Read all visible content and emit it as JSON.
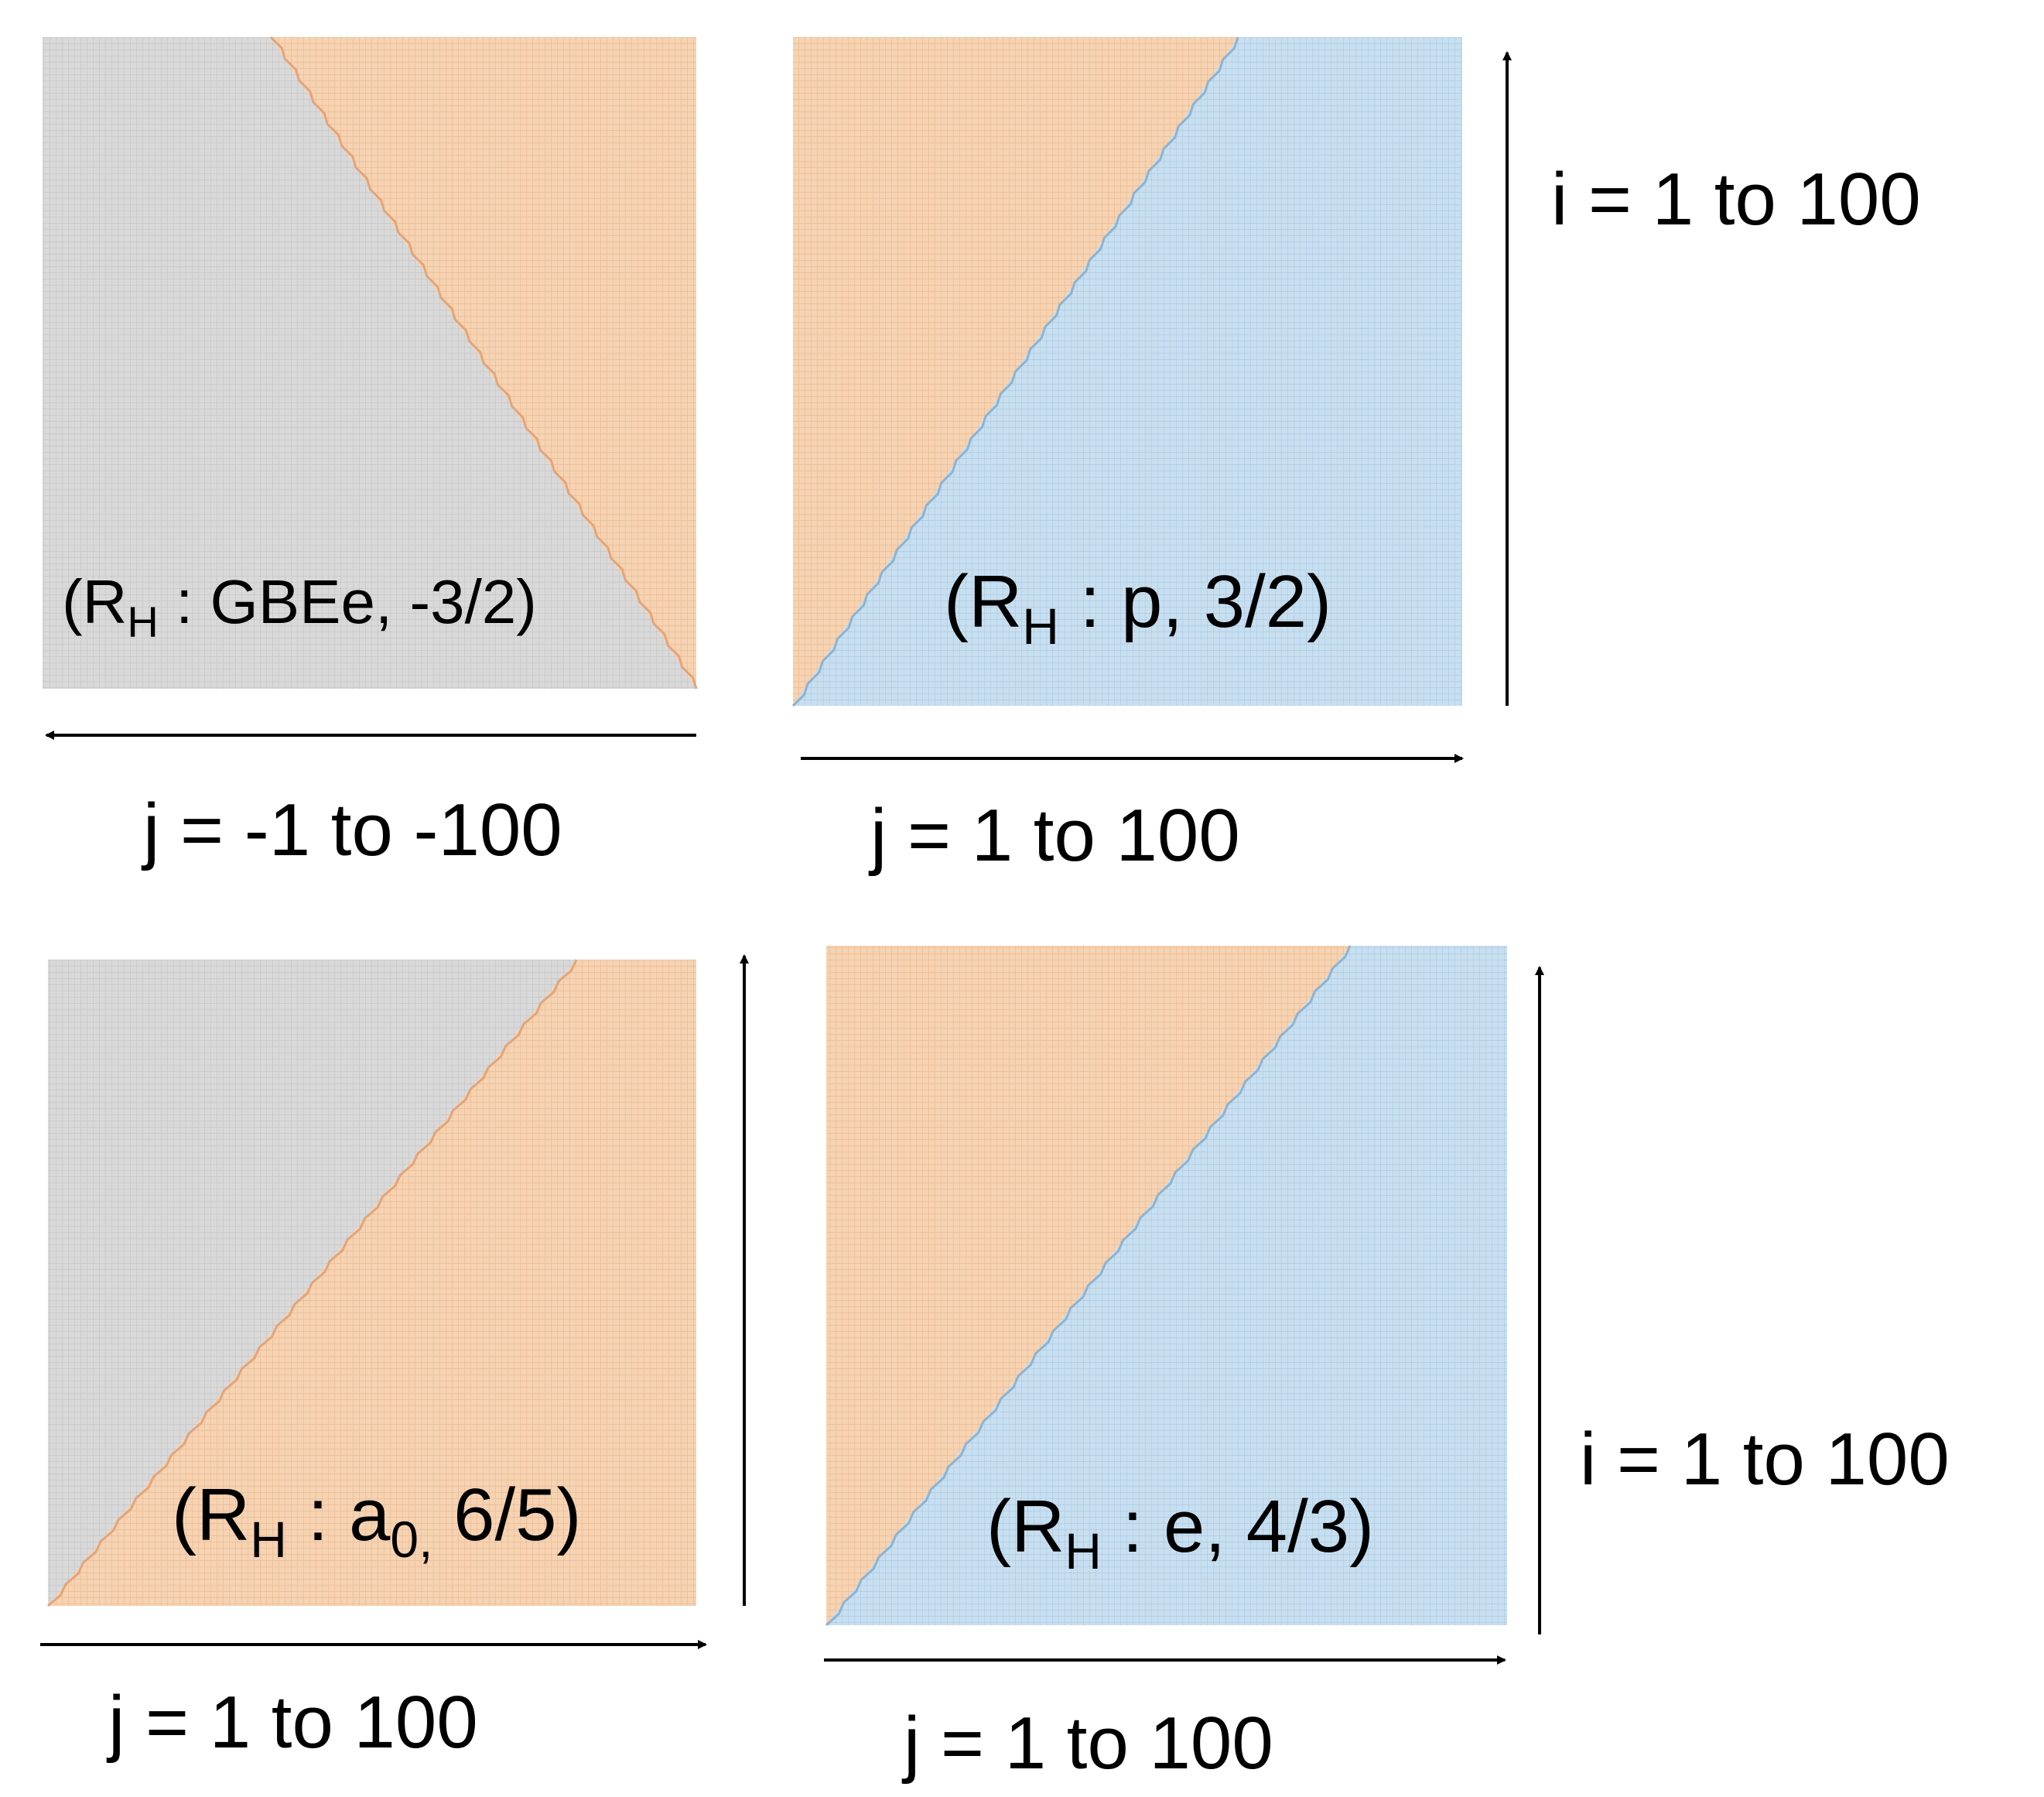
{
  "colors": {
    "grey": "#d9d9d9",
    "orange": "#f6d3b2",
    "blue": "#c8dff0",
    "grid_grey": "#c4c4c4",
    "grid_orange": "#e9b98f",
    "grid_blue": "#a9c9e2",
    "text": "#000000"
  },
  "panels": [
    {
      "id": "top-left",
      "label": {
        "prefix": "(R",
        "sub": "H",
        "body": " : GBEe, -3/2)"
      },
      "left_region": "grey",
      "right_region": "orange",
      "boundary": "descending",
      "j_range": "j =  -1 to -100",
      "j_arrow_direction": "left",
      "i_range": null
    },
    {
      "id": "top-right",
      "label": {
        "prefix": "(R",
        "sub": "H",
        "body": " : p, 3/2)"
      },
      "left_region": "orange",
      "right_region": "blue",
      "boundary": "ascending",
      "j_range": "j =  1 to 100",
      "j_arrow_direction": "right",
      "i_range": "i =  1 to 100"
    },
    {
      "id": "bottom-left",
      "label": {
        "prefix": "(R",
        "sub": "H",
        "body": " : a",
        "sub2": "0,",
        "tail": " 6/5)"
      },
      "left_region": "grey",
      "right_region": "orange",
      "boundary": "ascending",
      "j_range": "j =  1 to 100",
      "j_arrow_direction": "right",
      "i_range": null
    },
    {
      "id": "bottom-right",
      "label": {
        "prefix": "(R",
        "sub": "H",
        "body": " : e, 4/3)"
      },
      "left_region": "orange",
      "right_region": "blue",
      "boundary": "ascending",
      "j_range": "j =  1 to 100",
      "j_arrow_direction": "right",
      "i_range": "i =  1 to 100"
    }
  ]
}
